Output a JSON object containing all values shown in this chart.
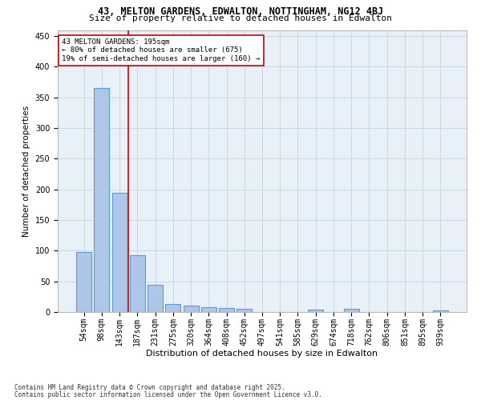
{
  "title1": "43, MELTON GARDENS, EDWALTON, NOTTINGHAM, NG12 4BJ",
  "title2": "Size of property relative to detached houses in Edwalton",
  "xlabel": "Distribution of detached houses by size in Edwalton",
  "ylabel": "Number of detached properties",
  "categories": [
    "54sqm",
    "98sqm",
    "143sqm",
    "187sqm",
    "231sqm",
    "275sqm",
    "320sqm",
    "364sqm",
    "408sqm",
    "452sqm",
    "497sqm",
    "541sqm",
    "585sqm",
    "629sqm",
    "674sqm",
    "718sqm",
    "762sqm",
    "806sqm",
    "851sqm",
    "895sqm",
    "939sqm"
  ],
  "values": [
    98,
    365,
    195,
    93,
    45,
    13,
    10,
    8,
    6,
    5,
    0,
    0,
    0,
    4,
    0,
    5,
    0,
    0,
    0,
    0,
    2
  ],
  "bar_color": "#aec6e8",
  "bar_edge_color": "#5b9bd5",
  "grid_color": "#c8d8e8",
  "bg_color": "#e8f0f8",
  "annotation_box_color": "#cc0000",
  "annotation_text": "43 MELTON GARDENS: 195sqm\n← 80% of detached houses are smaller (675)\n19% of semi-detached houses are larger (160) →",
  "footer1": "Contains HM Land Registry data © Crown copyright and database right 2025.",
  "footer2": "Contains public sector information licensed under the Open Government Licence v3.0.",
  "ylim": [
    0,
    460
  ],
  "yticks": [
    0,
    50,
    100,
    150,
    200,
    250,
    300,
    350,
    400,
    450
  ],
  "red_line_x": 2.5,
  "title1_fontsize": 8.5,
  "title2_fontsize": 8.0,
  "xlabel_fontsize": 8.0,
  "ylabel_fontsize": 7.5,
  "tick_fontsize": 7.0,
  "ann_fontsize": 6.5,
  "footer_fontsize": 5.5
}
